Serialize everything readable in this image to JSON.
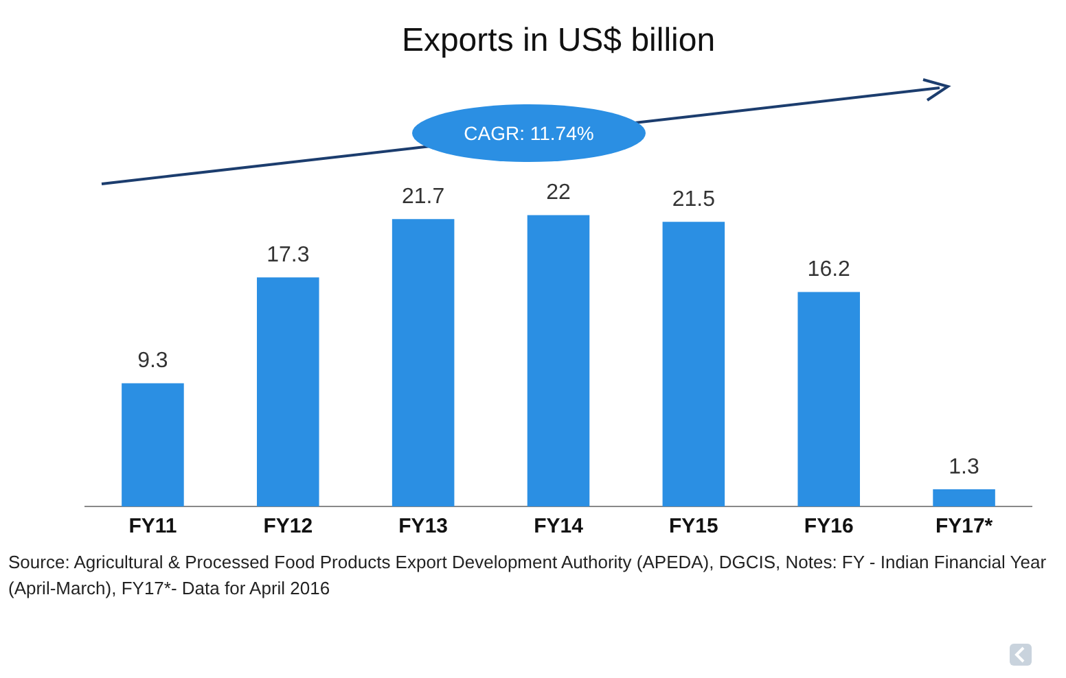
{
  "chart_data": {
    "type": "bar",
    "title": "Exports in US$ billion",
    "categories": [
      "FY11",
      "FY12",
      "FY13",
      "FY14",
      "FY15",
      "FY16",
      "FY17*"
    ],
    "values": [
      9.3,
      17.3,
      21.7,
      22,
      21.5,
      16.2,
      1.3
    ],
    "color": "#2b8fe3",
    "data_labels": true,
    "grid": false,
    "legend": false,
    "tick_labels": "x",
    "annotations": [
      "CAGR: 11.74%",
      "Source: Agricultural & Processed Food Products Export Development Authority (APEDA), DGCIS, Notes: FY - Indian Financial Year (April-March), FY17*- Data for April 2016"
    ]
  }
}
